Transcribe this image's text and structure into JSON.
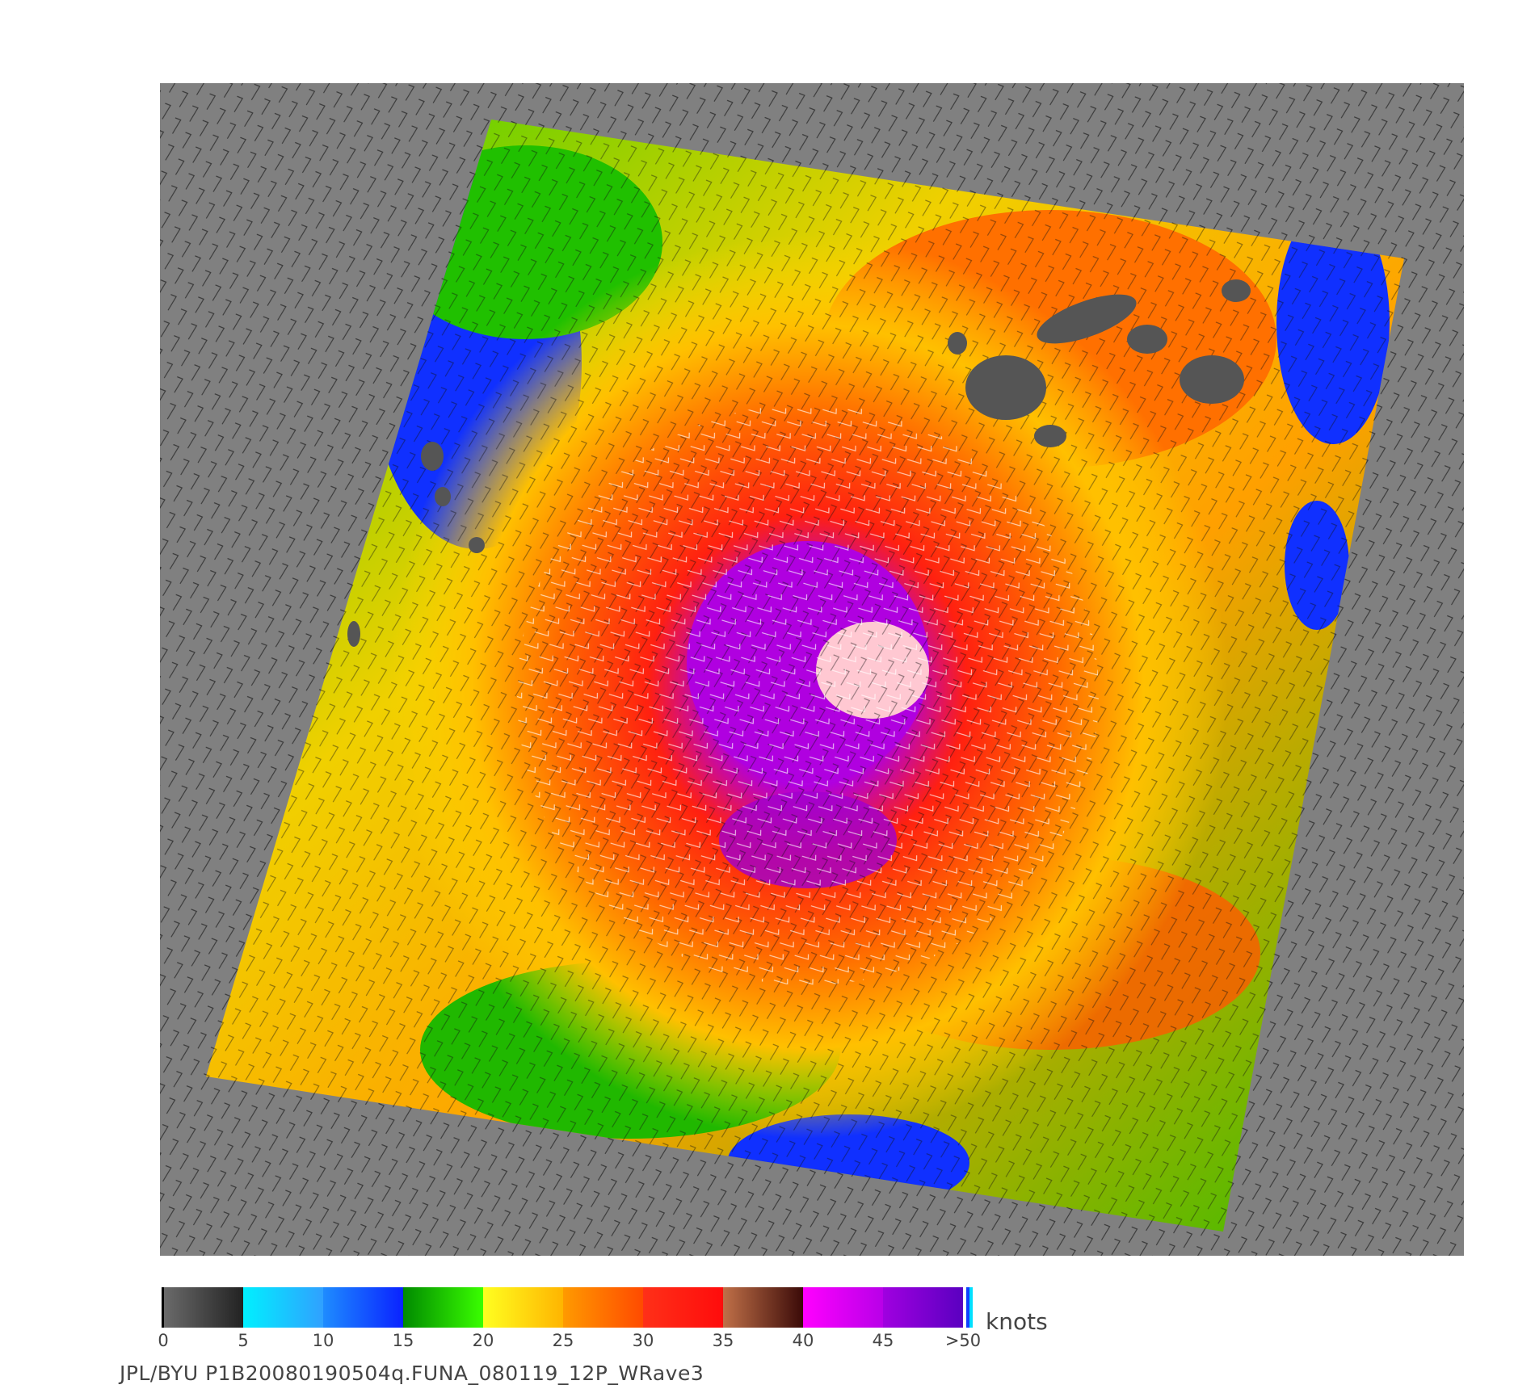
{
  "colorbar": {
    "units": "knots",
    "ticks": [
      "0",
      "5",
      "10",
      "15",
      "20",
      "25",
      "30",
      "35",
      "40",
      "45",
      ">50"
    ],
    "bands": [
      {
        "range": "0-5",
        "from": "#6b6b6b",
        "to": "#222222"
      },
      {
        "range": "5-10",
        "from": "#00f0ff",
        "to": "#30a0ff"
      },
      {
        "range": "10-15",
        "from": "#1e8cff",
        "to": "#0a22ff"
      },
      {
        "range": "15-20",
        "from": "#008a00",
        "to": "#3aff00"
      },
      {
        "range": "20-25",
        "from": "#ffff20",
        "to": "#ffb400"
      },
      {
        "range": "25-30",
        "from": "#ff9a00",
        "to": "#ff4a00"
      },
      {
        "range": "30-35",
        "from": "#ff3018",
        "to": "#ff0c0c"
      },
      {
        "range": "35-40",
        "from": "#c07048",
        "to": "#3a0a08"
      },
      {
        "range": "40-45",
        "from": "#ff00ff",
        "to": "#b800e8"
      },
      {
        "range": "45-50",
        "from": "#a000e0",
        "to": "#5a00c0"
      }
    ]
  },
  "caption": "JPL/BYU  P1B20080190504q.FUNA_080119_12P_WRave3",
  "colors": {
    "background": "#808080",
    "land": "#555555",
    "eye": "#ffc8d2"
  }
}
